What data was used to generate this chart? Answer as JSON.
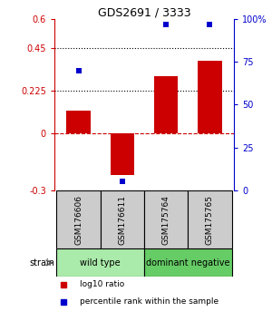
{
  "title": "GDS2691 / 3333",
  "samples": [
    "GSM176606",
    "GSM176611",
    "GSM175764",
    "GSM175765"
  ],
  "log10_ratio": [
    0.12,
    -0.22,
    0.3,
    0.38
  ],
  "percentile_rank": [
    70,
    5,
    97,
    97
  ],
  "bar_color": "#cc0000",
  "dot_color": "#0000cc",
  "ylim_left": [
    -0.3,
    0.6
  ],
  "ylim_right": [
    0,
    100
  ],
  "yticks_left": [
    -0.3,
    0,
    0.225,
    0.45,
    0.6
  ],
  "yticks_right": [
    0,
    25,
    50,
    75,
    100
  ],
  "ytick_labels_left": [
    "-0.3",
    "0",
    "0.225",
    "0.45",
    "0.6"
  ],
  "ytick_labels_right": [
    "0",
    "25",
    "50",
    "75",
    "100%"
  ],
  "hlines": [
    0.225,
    0.45
  ],
  "zero_line": 0,
  "groups": [
    {
      "label": "wild type",
      "samples": [
        0,
        1
      ],
      "color": "#aaeaaa"
    },
    {
      "label": "dominant negative",
      "samples": [
        2,
        3
      ],
      "color": "#66cc66"
    }
  ],
  "strain_label": "strain",
  "legend_items": [
    {
      "color": "#cc0000",
      "label": "log10 ratio"
    },
    {
      "color": "#0000cc",
      "label": "percentile rank within the sample"
    }
  ],
  "background_color": "#ffffff",
  "sample_box_color": "#cccccc"
}
